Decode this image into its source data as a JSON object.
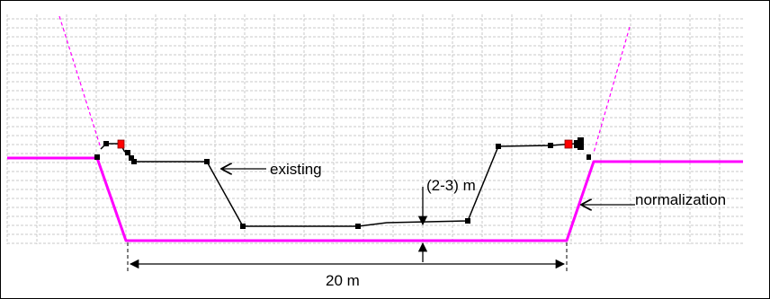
{
  "labels": {
    "existing": "existing",
    "depth": "(2-3) m",
    "normalization": "normalization",
    "width": "20 m"
  },
  "colors": {
    "normalization_line": "#ff00ff",
    "existing_line": "#000000",
    "survey_point": "#000000",
    "highlight_point": "#ff0000",
    "grid": "#c8c8c8",
    "frame": "#000000"
  },
  "elements": {
    "grid": "dashed-grid",
    "existing_profile": "existing-channel-profile",
    "normalized_profile": "normalized-channel-profile",
    "dimension": "width-dimension"
  }
}
